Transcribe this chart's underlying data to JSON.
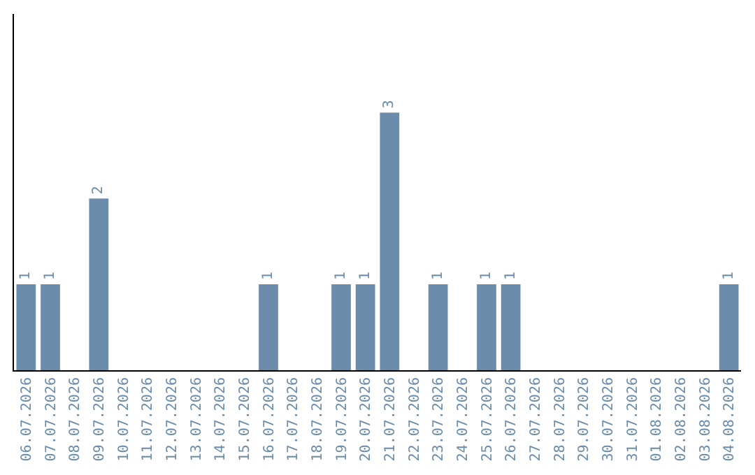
{
  "chart_data": {
    "type": "bar",
    "categories": [
      "06.07.2026",
      "07.07.2026",
      "08.07.2026",
      "09.07.2026",
      "10.07.2026",
      "11.07.2026",
      "12.07.2026",
      "13.07.2026",
      "14.07.2026",
      "15.07.2026",
      "16.07.2026",
      "17.07.2026",
      "18.07.2026",
      "19.07.2026",
      "20.07.2026",
      "21.07.2026",
      "22.07.2026",
      "23.07.2026",
      "24.07.2026",
      "25.07.2026",
      "26.07.2026",
      "27.07.2026",
      "28.07.2026",
      "29.07.2026",
      "30.07.2026",
      "31.07.2026",
      "01.08.2026",
      "02.08.2026",
      "03.08.2026",
      "04.08.2026"
    ],
    "values": [
      1,
      1,
      0,
      2,
      0,
      0,
      0,
      0,
      0,
      0,
      1,
      0,
      0,
      1,
      1,
      3,
      0,
      1,
      0,
      1,
      1,
      0,
      0,
      0,
      0,
      0,
      0,
      0,
      0,
      1
    ],
    "value_labels": [
      "1",
      "1",
      null,
      "2",
      null,
      null,
      null,
      null,
      null,
      null,
      "1",
      null,
      null,
      "1",
      "1",
      "3",
      null,
      "1",
      null,
      "1",
      "1",
      null,
      null,
      null,
      null,
      null,
      null,
      null,
      null,
      "1"
    ],
    "color": "#6b8cab",
    "ylim": [
      0,
      4.15
    ],
    "tick_labels": "x",
    "legend": false
  }
}
